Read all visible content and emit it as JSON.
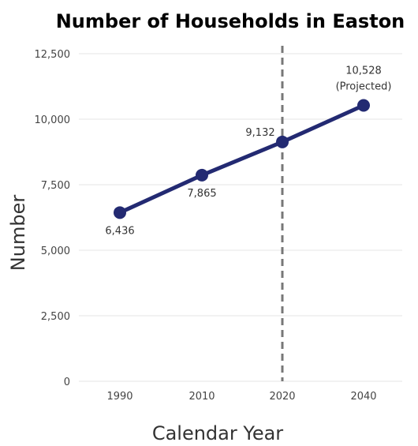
{
  "chart_data": {
    "type": "line",
    "title": "Number of Households in Easton",
    "xlabel": "Calendar Year",
    "ylabel": "Number",
    "categories": [
      "1990",
      "2010",
      "2020",
      "2040"
    ],
    "series": [
      {
        "values": [
          6436,
          7865,
          9132,
          10528
        ]
      }
    ],
    "data_labels": [
      "6,436",
      "7,865",
      "9,132",
      "10,528"
    ],
    "projection_note": "(Projected)",
    "yticks": [
      0,
      2500,
      5000,
      7500,
      10000,
      12500
    ],
    "ytick_labels": [
      "0",
      "2,500",
      "5,000",
      "7,500",
      "10,000",
      "12,500"
    ],
    "ylim": [
      0,
      12500
    ],
    "grid": true,
    "reference_line": {
      "category": "2020",
      "style": "dashed"
    },
    "colors": {
      "line": "#232a72",
      "reference": "#777777",
      "grid": "#e6e6e6"
    }
  }
}
